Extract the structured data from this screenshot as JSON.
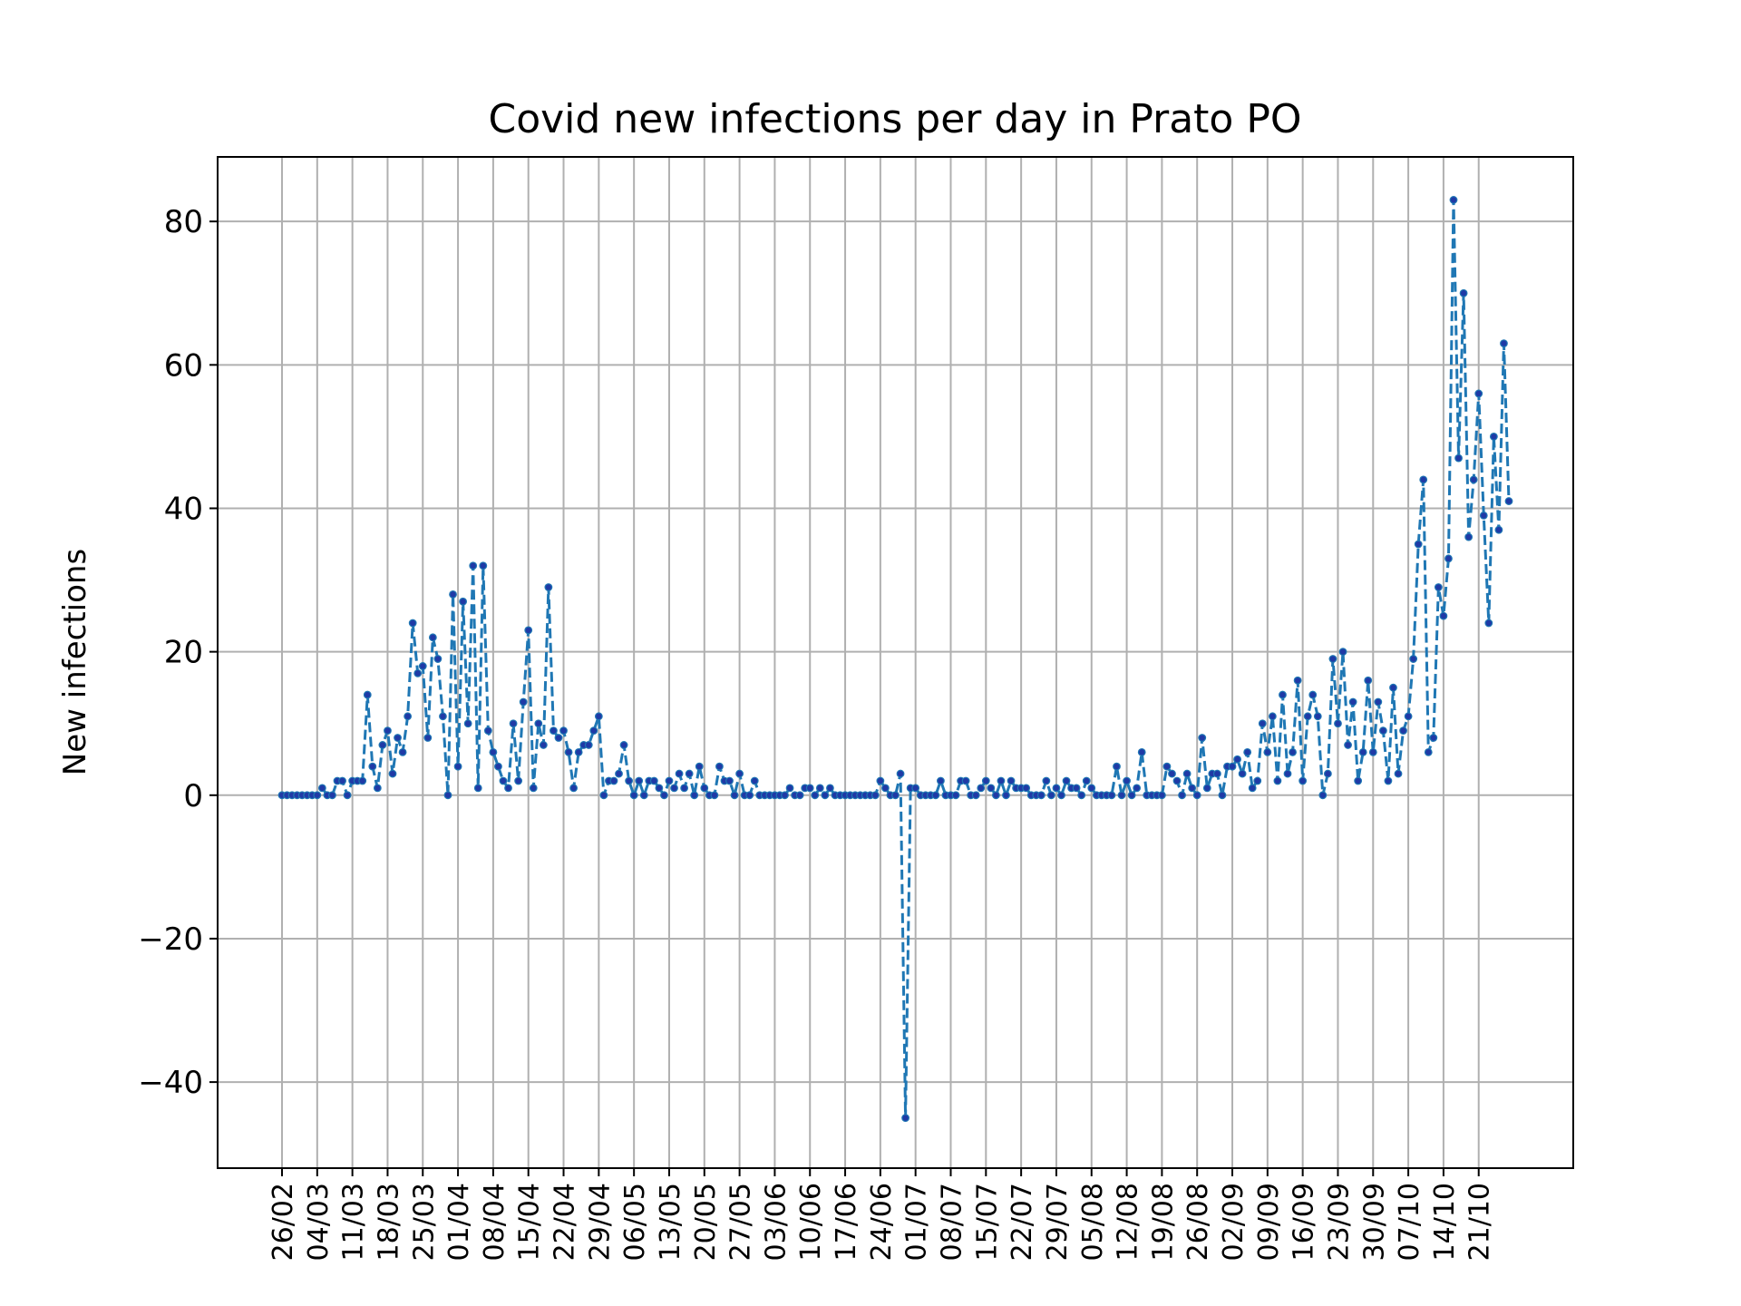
{
  "chart_data": {
    "type": "line",
    "title": "Covid new infections per day in Prato PO",
    "ylabel": "New infections",
    "xlabel": "",
    "start_date": "26/02",
    "x_tick_labels": [
      "26/02",
      "04/03",
      "11/03",
      "18/03",
      "25/03",
      "01/04",
      "08/04",
      "15/04",
      "22/04",
      "29/04",
      "06/05",
      "13/05",
      "20/05",
      "27/05",
      "03/06",
      "10/06",
      "17/06",
      "24/06",
      "01/07",
      "08/07",
      "15/07",
      "22/07",
      "29/07",
      "05/08",
      "12/08",
      "19/08",
      "26/08",
      "02/09",
      "09/09",
      "16/09",
      "23/09",
      "30/09",
      "07/10",
      "14/10",
      "21/10"
    ],
    "y_tick_labels": [
      "80",
      "60",
      "40",
      "20",
      "0",
      "−20",
      "−40"
    ],
    "ylim": [
      -52,
      89
    ],
    "y_ticks": [
      80,
      60,
      40,
      20,
      0,
      -20,
      -40
    ],
    "grid": true,
    "line_style": "dashed",
    "series": [
      {
        "color": "#1f77b4",
        "marker_color": "#1f3aa6",
        "values": [
          0,
          0,
          0,
          0,
          0,
          0,
          0,
          0,
          1,
          0,
          0,
          2,
          2,
          0,
          2,
          2,
          2,
          14,
          4,
          1,
          7,
          9,
          3,
          8,
          6,
          11,
          24,
          17,
          18,
          8,
          22,
          19,
          11,
          0,
          28,
          4,
          27,
          10,
          32,
          1,
          32,
          9,
          6,
          4,
          2,
          1,
          10,
          2,
          13,
          23,
          1,
          10,
          7,
          29,
          9,
          8,
          9,
          6,
          1,
          6,
          7,
          7,
          9,
          11,
          0,
          2,
          2,
          3,
          7,
          2,
          0,
          2,
          0,
          2,
          2,
          1,
          0,
          2,
          1,
          3,
          1,
          3,
          0,
          4,
          1,
          0,
          0,
          4,
          2,
          2,
          0,
          3,
          0,
          0,
          2,
          0,
          0,
          0,
          0,
          0,
          0,
          1,
          0,
          0,
          1,
          1,
          0,
          1,
          0,
          1,
          0,
          0,
          0,
          0,
          0,
          0,
          0,
          0,
          0,
          2,
          1,
          0,
          0,
          3,
          -45,
          1,
          1,
          0,
          0,
          0,
          0,
          2,
          0,
          0,
          0,
          2,
          2,
          0,
          0,
          1,
          2,
          1,
          0,
          2,
          0,
          2,
          1,
          1,
          1,
          0,
          0,
          0,
          2,
          0,
          1,
          0,
          2,
          1,
          1,
          0,
          2,
          1,
          0,
          0,
          0,
          0,
          4,
          0,
          2,
          0,
          1,
          6,
          0,
          0,
          0,
          0,
          4,
          3,
          2,
          0,
          3,
          1,
          0,
          8,
          1,
          3,
          3,
          0,
          4,
          4,
          5,
          3,
          6,
          1,
          2,
          10,
          6,
          11,
          2,
          14,
          3,
          6,
          16,
          2,
          11,
          14,
          11,
          0,
          3,
          19,
          10,
          20,
          7,
          13,
          2,
          6,
          16,
          6,
          13,
          9,
          2,
          15,
          3,
          9,
          11,
          19,
          35,
          44,
          6,
          8,
          29,
          25,
          33,
          83,
          47,
          70,
          36,
          44,
          56,
          39,
          24,
          50,
          37,
          63,
          41
        ]
      }
    ]
  }
}
